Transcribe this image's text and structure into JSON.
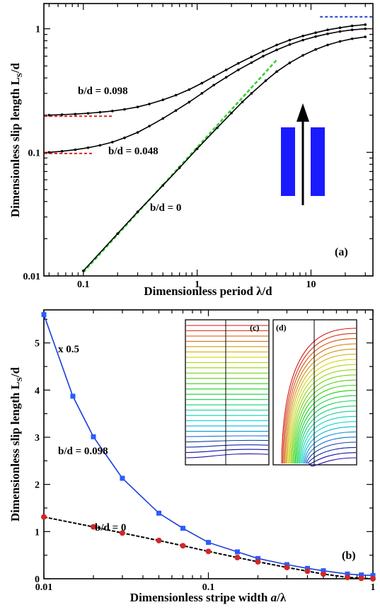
{
  "chart_data": [
    {
      "id": "a",
      "type": "line",
      "panel_label": "(a)",
      "xlabel": "Dimensionless period  λ/d",
      "ylabel_main": "Dimensionless slip length  L",
      "ylabel_sub": "S",
      "ylabel_tail": "/d",
      "xscale": "log",
      "yscale": "log",
      "xlim": [
        0.045,
        35
      ],
      "ylim": [
        0.01,
        1.6
      ],
      "xticks": [
        0.1,
        1,
        10
      ],
      "xtick_labels": [
        "0.1",
        "1",
        "10"
      ],
      "yticks": [
        0.01,
        0.1,
        1
      ],
      "ytick_labels": [
        "0.01",
        "0.1",
        "1"
      ],
      "series": [
        {
          "name": "b/d = 0.098",
          "color": "#000000",
          "x": [
            0.05,
            0.065,
            0.085,
            0.11,
            0.14,
            0.18,
            0.23,
            0.3,
            0.38,
            0.5,
            0.65,
            0.85,
            1.1,
            1.4,
            1.8,
            2.3,
            3.0,
            3.8,
            5.0,
            6.5,
            8.5,
            11,
            14,
            18,
            23,
            30
          ],
          "y": [
            0.2,
            0.202,
            0.204,
            0.207,
            0.211,
            0.216,
            0.223,
            0.233,
            0.246,
            0.266,
            0.29,
            0.322,
            0.363,
            0.41,
            0.465,
            0.525,
            0.592,
            0.66,
            0.74,
            0.81,
            0.875,
            0.93,
            0.98,
            1.02,
            1.055,
            1.08
          ]
        },
        {
          "name": "b/d = 0.048",
          "color": "#000000",
          "x": [
            0.05,
            0.065,
            0.085,
            0.11,
            0.14,
            0.18,
            0.23,
            0.3,
            0.38,
            0.5,
            0.65,
            0.85,
            1.1,
            1.4,
            1.8,
            2.3,
            3.0,
            3.8,
            5.0,
            6.5,
            8.5,
            11,
            14,
            18,
            23,
            30
          ],
          "y": [
            0.1,
            0.102,
            0.105,
            0.109,
            0.114,
            0.121,
            0.131,
            0.145,
            0.163,
            0.188,
            0.218,
            0.255,
            0.3,
            0.35,
            0.405,
            0.465,
            0.532,
            0.6,
            0.675,
            0.745,
            0.81,
            0.865,
            0.91,
            0.95,
            0.98,
            1.0
          ]
        },
        {
          "name": "b/d = 0",
          "color": "#000000",
          "x": [
            0.1,
            0.2,
            0.3,
            0.5,
            0.7,
            1.0,
            1.5,
            2.0,
            2.5,
            3.0,
            4.0,
            5.0,
            6.5,
            8.5,
            11,
            14,
            18,
            23,
            30
          ],
          "y": [
            0.011,
            0.022,
            0.033,
            0.054,
            0.075,
            0.107,
            0.158,
            0.208,
            0.256,
            0.3,
            0.38,
            0.45,
            0.53,
            0.61,
            0.68,
            0.74,
            0.79,
            0.83,
            0.86
          ]
        }
      ],
      "guides": [
        {
          "kind": "dotted-horizontal",
          "color": "#e02020",
          "y": 0.196,
          "x": [
            0.045,
            0.18
          ]
        },
        {
          "kind": "dotted-horizontal",
          "color": "#e02020",
          "y": 0.098,
          "x": [
            0.045,
            0.12
          ]
        },
        {
          "kind": "dotted-horizontal",
          "color": "#2040d0",
          "y": 1.25,
          "x": [
            12,
            35
          ]
        },
        {
          "kind": "dotted-line",
          "color": "#30d030",
          "x": [
            0.1,
            5.0
          ],
          "y": [
            0.0107,
            0.56
          ]
        }
      ],
      "annotations": [
        {
          "text": "b/d = 0.098",
          "x": 0.065,
          "y": 0.3
        },
        {
          "text": "b/d = 0.048",
          "x": 0.17,
          "y": 0.085
        },
        {
          "text": "b/d = 0",
          "x": 0.55,
          "y": 0.036
        }
      ],
      "inset_colors": {
        "bar": "#1a1aff",
        "arrow": "#000000"
      }
    },
    {
      "id": "b",
      "type": "line",
      "panel_label": "(b)",
      "xlabel_main": "Dimensionless stripe width  ",
      "xlabel_italic": "a",
      "xlabel_tail": "/λ",
      "ylabel_main": "Dimensionless slip length  L",
      "ylabel_sub": "S",
      "ylabel_tail": "/d",
      "xscale": "log",
      "yscale": "linear",
      "xlim": [
        0.01,
        1
      ],
      "ylim": [
        0,
        5.7
      ],
      "xticks": [
        0.01,
        0.1,
        1
      ],
      "xtick_labels": [
        "0.01",
        "0.1",
        "1"
      ],
      "yticks": [
        0,
        1,
        2,
        3,
        4,
        5
      ],
      "ytick_labels": [
        "0",
        "1",
        "2",
        "3",
        "4",
        "5"
      ],
      "series": [
        {
          "name": "b/d = 0.098",
          "color": "#1a3fd9",
          "marker_color": "#2a5cff",
          "x": [
            0.01,
            0.015,
            0.02,
            0.03,
            0.05,
            0.07,
            0.1,
            0.15,
            0.2,
            0.3,
            0.4,
            0.5,
            0.7,
            0.85,
            1.0
          ],
          "y": [
            5.6,
            3.87,
            3.01,
            2.13,
            1.39,
            1.07,
            0.77,
            0.57,
            0.43,
            0.3,
            0.22,
            0.17,
            0.1,
            0.08,
            0.07
          ]
        },
        {
          "name": "b/d = 0",
          "color": "#000000",
          "marker_color": "#d02828",
          "x": [
            0.01,
            0.02,
            0.03,
            0.05,
            0.07,
            0.1,
            0.15,
            0.2,
            0.3,
            0.4,
            0.5,
            0.7,
            0.85,
            1.0
          ],
          "y": [
            1.31,
            1.1,
            0.97,
            0.81,
            0.7,
            0.58,
            0.45,
            0.36,
            0.24,
            0.16,
            0.1,
            0.03,
            0.01,
            0.0
          ]
        }
      ],
      "annotations": [
        {
          "text": "x 0.5",
          "x": 0.0125,
          "y": 4.9
        },
        {
          "text": "b/d = 0.098",
          "x": 0.012,
          "y": 2.0
        },
        {
          "text": "b/d = 0",
          "x": 0.025,
          "y": 0.42
        }
      ],
      "insets": [
        {
          "label": "(c)"
        },
        {
          "label": "(d)"
        }
      ]
    }
  ]
}
